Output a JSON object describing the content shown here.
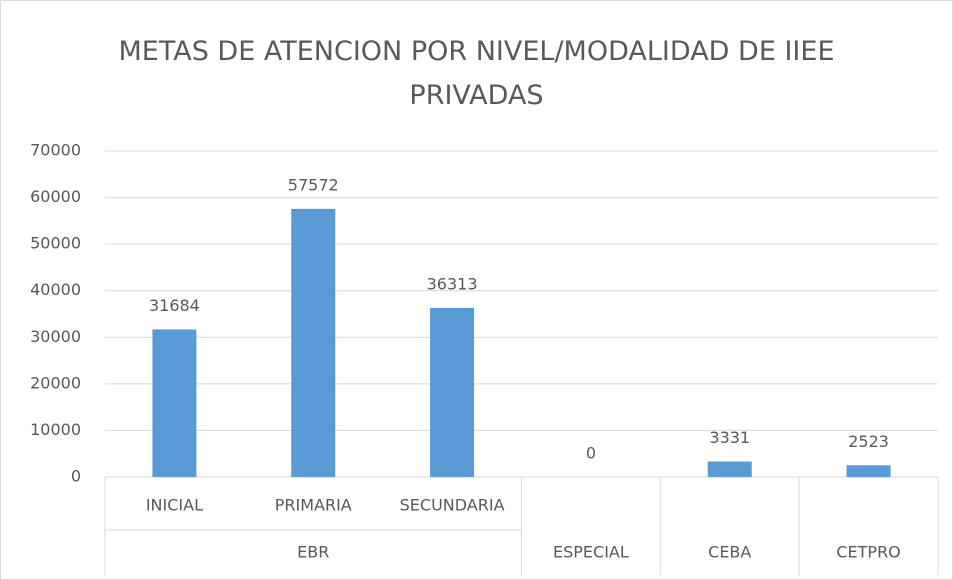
{
  "chart_data": {
    "type": "bar",
    "title": "METAS DE ATENCION POR NIVEL/MODALIDAD DE IIEE PRIVADAS",
    "categories": [
      "INICIAL",
      "PRIMARIA",
      "SECUNDARIA",
      null,
      null,
      null
    ],
    "category_groups": [
      "EBR",
      "EBR",
      "EBR",
      "ESPECIAL",
      "CEBA",
      "CETPRO"
    ],
    "values": [
      31684,
      57572,
      36313,
      0,
      3331,
      2523
    ],
    "color": "#5b9bd5",
    "ylim": [
      0,
      70000
    ],
    "yticks": [
      0,
      10000,
      20000,
      30000,
      40000,
      50000,
      60000,
      70000
    ],
    "grid": true,
    "data_labels": true
  }
}
